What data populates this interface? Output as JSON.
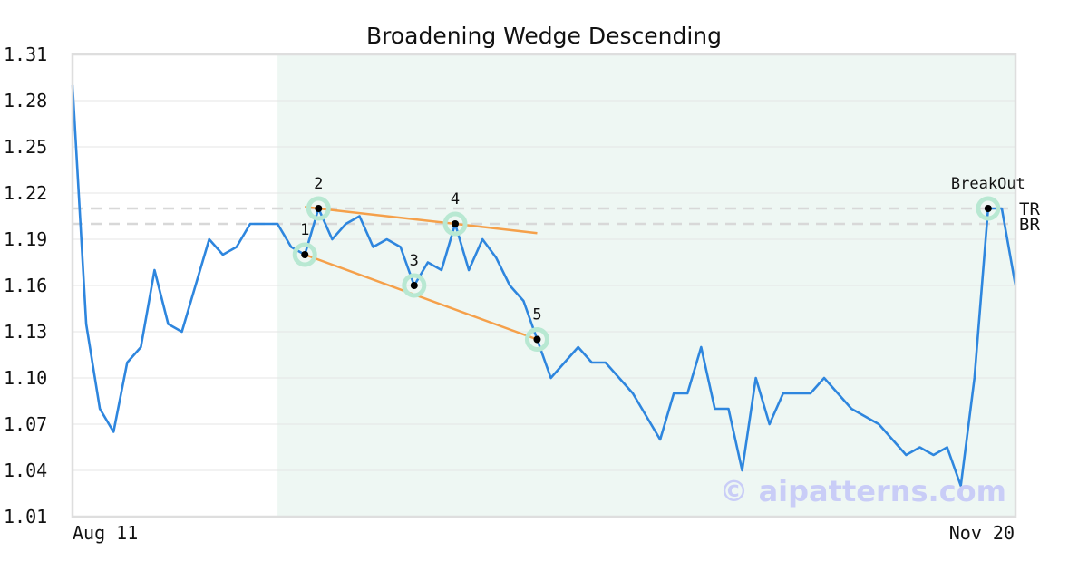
{
  "chart_data": {
    "type": "line",
    "title": "Broadening Wedge Descending",
    "xlabel": "",
    "ylabel": "",
    "ylim": [
      1.01,
      1.31
    ],
    "y_ticks": [
      "1.31",
      "1.28",
      "1.25",
      "1.22",
      "1.19",
      "1.16",
      "1.13",
      "1.10",
      "1.07",
      "1.04",
      "1.01"
    ],
    "x_tick_labels": [
      "Aug 11",
      "Nov 20"
    ],
    "grid": "horizontal",
    "colors": {
      "price": "#2e86de",
      "trendline": "#f5a04a",
      "pattern_region": "#eef7f3",
      "marker_halo": "#b8e8d2",
      "reference_line": "#d8d8d8"
    },
    "series": [
      {
        "values": [
          1.29,
          1.135,
          1.08,
          1.065,
          1.11,
          1.12,
          1.17,
          1.135,
          1.13,
          1.16,
          1.19,
          1.18,
          1.185,
          1.2,
          1.2,
          1.2,
          1.185,
          1.18,
          1.21,
          1.19,
          1.2,
          1.205,
          1.185,
          1.19,
          1.185,
          1.16,
          1.175,
          1.17,
          1.2,
          1.17,
          1.19,
          1.178,
          1.16,
          1.15,
          1.125,
          1.1,
          1.11,
          1.12,
          1.11,
          1.11,
          1.1,
          1.09,
          1.075,
          1.06,
          1.09,
          1.09,
          1.12,
          1.08,
          1.08,
          1.04,
          1.1,
          1.07,
          1.09,
          1.09,
          1.09,
          1.1,
          1.09,
          1.08,
          1.075,
          1.07,
          1.06,
          1.05,
          1.055,
          1.05,
          1.055,
          1.03,
          1.1,
          1.21,
          1.21,
          1.16
        ]
      }
    ],
    "pattern_region": {
      "start_index": 15,
      "end_index": 69
    },
    "pattern_points": [
      {
        "label": "1",
        "index": 17,
        "value": 1.18
      },
      {
        "label": "2",
        "index": 18,
        "value": 1.21
      },
      {
        "label": "3",
        "index": 25,
        "value": 1.16
      },
      {
        "label": "4",
        "index": 28,
        "value": 1.2
      },
      {
        "label": "5",
        "index": 34,
        "value": 1.125
      },
      {
        "label": "BreakOut",
        "index": 67,
        "value": 1.21
      }
    ],
    "trendlines": [
      {
        "from": {
          "index": 17,
          "value": 1.18
        },
        "to": {
          "index": 34,
          "value": 1.125
        }
      },
      {
        "from": {
          "index": 17,
          "value": 1.211
        },
        "to": {
          "index": 34,
          "value": 1.194
        }
      }
    ],
    "reference_lines": [
      {
        "label": "TR",
        "value": 1.21
      },
      {
        "label": "BR",
        "value": 1.2
      }
    ],
    "watermark": "© aipatterns.com"
  }
}
